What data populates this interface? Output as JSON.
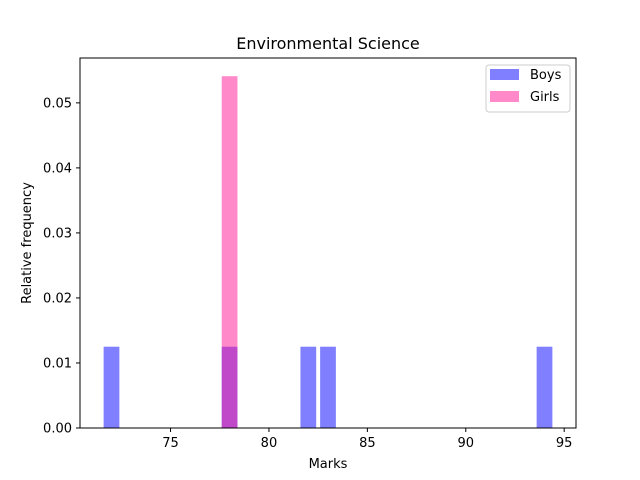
{
  "chart_data": {
    "type": "bar",
    "title": "Environmental Science",
    "xlabel": "Marks",
    "ylabel": "Relative frequency",
    "xlim": [
      70.4,
      95.6
    ],
    "ylim": [
      0,
      0.0569
    ],
    "x_ticks": [
      75,
      80,
      85,
      90,
      95
    ],
    "y_ticks": [
      0.0,
      0.01,
      0.02,
      0.03,
      0.04,
      0.05
    ],
    "y_tick_labels": [
      "0.00",
      "0.01",
      "0.02",
      "0.03",
      "0.04",
      "0.05"
    ],
    "grid": false,
    "legend_position": "top-right",
    "bin_width": 0.8,
    "series": [
      {
        "name": "Boys",
        "color": "#0000ff",
        "opacity": 0.5,
        "bins": [
          {
            "x": 72.0,
            "value": 0.0125
          },
          {
            "x": 78.0,
            "value": 0.0125
          },
          {
            "x": 82.0,
            "value": 0.0125
          },
          {
            "x": 83.0,
            "value": 0.0125
          },
          {
            "x": 94.0,
            "value": 0.0125
          }
        ]
      },
      {
        "name": "Girls",
        "color": "#ff1493",
        "opacity": 0.5,
        "bins": [
          {
            "x": 78.0,
            "value": 0.0541
          }
        ]
      }
    ]
  }
}
